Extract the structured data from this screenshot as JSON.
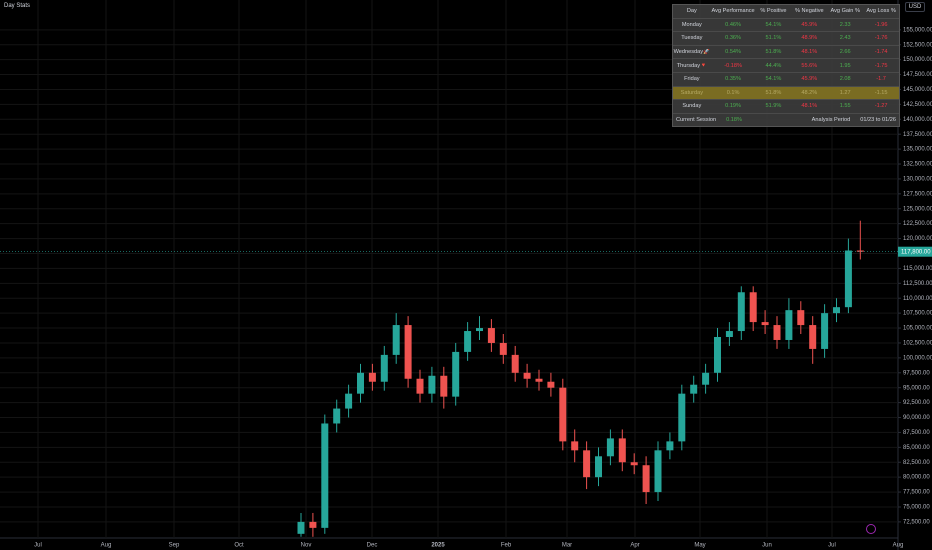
{
  "indicator": "Day Stats",
  "currency": "USD",
  "chart_data": {
    "type": "candlestick",
    "x_labels": [
      "Jul",
      "Aug",
      "Sep",
      "Oct",
      "Nov",
      "Dec",
      "2025",
      "Feb",
      "Mar",
      "Apr",
      "May",
      "Jun",
      "Jul",
      "Aug"
    ],
    "open": [
      70500,
      72500,
      71500,
      89000,
      91500,
      94000,
      97500,
      96000,
      100500,
      105500,
      96500,
      94000,
      97000,
      93500,
      101000,
      104500,
      105000,
      102500,
      100500,
      97500,
      96500,
      96000,
      95000,
      86000,
      84500,
      80000,
      83500,
      86500,
      82500,
      82000,
      77500,
      84500,
      86000,
      94000,
      95500,
      97500,
      103500,
      104500,
      111000,
      106000,
      105500,
      103000,
      108000,
      105500,
      101500,
      107500,
      108500,
      118000
    ],
    "high": [
      74000,
      74000,
      90500,
      93000,
      95500,
      99000,
      99000,
      102000,
      107500,
      107000,
      98000,
      98500,
      98500,
      102500,
      106000,
      107000,
      106500,
      104000,
      102000,
      99000,
      98000,
      97500,
      96500,
      88000,
      86000,
      85000,
      88000,
      88000,
      84000,
      83500,
      86000,
      87500,
      95500,
      97000,
      99000,
      105000,
      106000,
      112000,
      112000,
      108000,
      107000,
      110000,
      109500,
      107000,
      109000,
      110000,
      120000,
      123000
    ],
    "low": [
      70000,
      70000,
      70500,
      87500,
      90000,
      92500,
      94500,
      94500,
      99000,
      95000,
      92500,
      92500,
      91500,
      92000,
      99500,
      103000,
      101000,
      99000,
      96000,
      95000,
      94500,
      93500,
      84500,
      82500,
      78000,
      78500,
      82000,
      81000,
      80500,
      75500,
      76000,
      83000,
      84500,
      92500,
      94000,
      96000,
      102000,
      103000,
      104500,
      104000,
      101500,
      101500,
      104000,
      99000,
      100000,
      106000,
      107500,
      116500
    ],
    "close": [
      72500,
      71500,
      89000,
      91500,
      94000,
      97500,
      96000,
      100500,
      105500,
      96500,
      94000,
      97000,
      93500,
      101000,
      104500,
      105000,
      102500,
      100500,
      97500,
      96500,
      96000,
      95000,
      86000,
      84500,
      80000,
      83500,
      86500,
      82500,
      82000,
      77500,
      84500,
      86000,
      94000,
      95500,
      97500,
      103500,
      104500,
      111000,
      106000,
      105500,
      103000,
      108000,
      105500,
      101500,
      107500,
      108500,
      118000,
      117800
    ],
    "up_color": "#26a69a",
    "down_color": "#ef5350",
    "last_price": {
      "value": 117800,
      "label": "117,800.00"
    },
    "ylim": [
      69800,
      160000
    ],
    "yticks": [
      {
        "value": 72500,
        "label": "72,500.00"
      },
      {
        "value": 75000,
        "label": "75,000.00"
      },
      {
        "value": 77500,
        "label": "77,500.00"
      },
      {
        "value": 80000,
        "label": "80,000.00"
      },
      {
        "value": 82500,
        "label": "82,500.00"
      },
      {
        "value": 85000,
        "label": "85,000.00"
      },
      {
        "value": 87500,
        "label": "87,500.00"
      },
      {
        "value": 90000,
        "label": "90,000.00"
      },
      {
        "value": 92500,
        "label": "92,500.00"
      },
      {
        "value": 95000,
        "label": "95,000.00"
      },
      {
        "value": 97500,
        "label": "97,500.00"
      },
      {
        "value": 100000,
        "label": "100,000.00"
      },
      {
        "value": 102500,
        "label": "102,500.00"
      },
      {
        "value": 105000,
        "label": "105,000.00"
      },
      {
        "value": 107500,
        "label": "107,500.00"
      },
      {
        "value": 110000,
        "label": "110,000.00"
      },
      {
        "value": 112500,
        "label": "112,500.00"
      },
      {
        "value": 115000,
        "label": "115,000.00"
      },
      {
        "value": 117500,
        "label": "117,500.00"
      },
      {
        "value": 120000,
        "label": "120,000.00"
      },
      {
        "value": 122500,
        "label": "122,500.00"
      },
      {
        "value": 125000,
        "label": "125,000.00"
      },
      {
        "value": 127500,
        "label": "127,500.00"
      },
      {
        "value": 130000,
        "label": "130,000.00"
      },
      {
        "value": 132500,
        "label": "132,500.00"
      },
      {
        "value": 135000,
        "label": "135,000.00"
      },
      {
        "value": 137500,
        "label": "137,500.00"
      },
      {
        "value": 140000,
        "label": "140,000.00"
      },
      {
        "value": 142500,
        "label": "142,500.00"
      },
      {
        "value": 145000,
        "label": "145,000.00"
      },
      {
        "value": 147500,
        "label": "147,500.00"
      },
      {
        "value": 150000,
        "label": "150,000.00"
      },
      {
        "value": 152500,
        "label": "152,500.00"
      },
      {
        "value": 155000,
        "label": "155,000.00"
      }
    ],
    "grid": true
  },
  "table": {
    "header": [
      "Day",
      "Avg Performance",
      "% Positive",
      "% Negative",
      "Avg Gain %",
      "Avg Loss %"
    ],
    "rows": [
      [
        "Monday",
        "0.46%",
        "54.1%",
        "45.9%",
        "2.33",
        "-1.96"
      ],
      [
        "Tuesday",
        "0.36%",
        "51.1%",
        "48.9%",
        "2.43",
        "-1.76"
      ],
      [
        "Wednesday🚀",
        "0.54%",
        "51.8%",
        "48.1%",
        "2.66",
        "-1.74"
      ],
      [
        "Thursday🔻",
        "-0.18%",
        "44.4%",
        "55.6%",
        "1.95",
        "-1.75"
      ],
      [
        "Friday",
        "0.35%",
        "54.1%",
        "45.9%",
        "2.08",
        "-1.7"
      ],
      [
        "Saturday",
        "0.1%",
        "51.8%",
        "48.2%",
        "1.27",
        "-1.15"
      ],
      [
        "Sunday",
        "0.19%",
        "51.9%",
        "48.1%",
        "1.55",
        "-1.27"
      ]
    ],
    "footer": [
      "Current Session",
      "0.18%",
      "Analysis Period",
      "01/23 to 01/26"
    ]
  }
}
